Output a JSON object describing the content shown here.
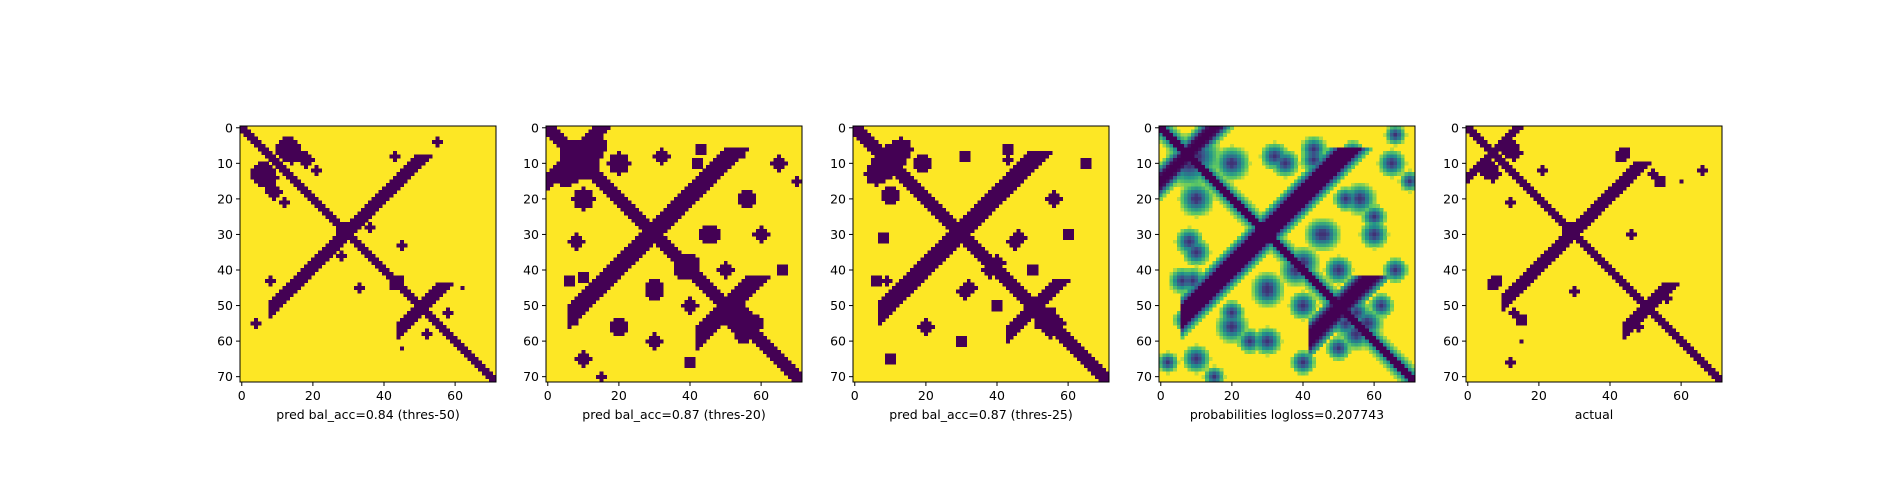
{
  "colors": {
    "background": "#440154",
    "contact": "#fde725",
    "viridis": [
      "#440154",
      "#3b528b",
      "#21918c",
      "#5ec962",
      "#fde725"
    ]
  },
  "chart_data": [
    {
      "type": "heatmap",
      "title": "",
      "xlabel": "pred bal_acc=0.84 (thres-50)",
      "ylabel": "",
      "size": 72,
      "xlim": [
        0,
        71
      ],
      "ylim": [
        71,
        0
      ],
      "xticks": [
        "0",
        "20",
        "40",
        "60"
      ],
      "yticks": [
        "0",
        "10",
        "20",
        "30",
        "40",
        "50",
        "60",
        "70"
      ],
      "colormap": "viridis",
      "value_range": [
        0,
        1
      ],
      "background_value": 1,
      "diagonal_band_value": 0,
      "diagonal_band_halfwidth": 1.6,
      "anti_diagonals": [
        {
          "sum": 59,
          "from": 8,
          "to": 40,
          "halfwidth": 1.2
        },
        {
          "sum": 101,
          "from": 44,
          "to": 62,
          "halfwidth": 1.0
        },
        {
          "sum": 85,
          "from": 63,
          "to": 70,
          "halfwidth": 0.7
        }
      ],
      "patches": [
        [
          13,
          6,
          3.5
        ],
        [
          14,
          7,
          3.0
        ],
        [
          18,
          9,
          2.0
        ],
        [
          8,
          43,
          1.2
        ],
        [
          12,
          21,
          1.0
        ],
        [
          44,
          43,
          1.5
        ],
        [
          55,
          46,
          1.5
        ],
        [
          28,
          28,
          1.5
        ],
        [
          28,
          36,
          1.2
        ],
        [
          48,
          48,
          1.2
        ],
        [
          58,
          52,
          1.3
        ],
        [
          33,
          45,
          1.0
        ],
        [
          45,
          62,
          0.8
        ],
        [
          4,
          55,
          1.0
        ]
      ]
    },
    {
      "type": "heatmap",
      "title": "",
      "xlabel": "pred bal_acc=0.87 (thres-20)",
      "ylabel": "",
      "size": 72,
      "xlim": [
        0,
        71
      ],
      "ylim": [
        71,
        0
      ],
      "xticks": [
        "0",
        "20",
        "40",
        "60"
      ],
      "yticks": [
        "0",
        "10",
        "20",
        "30",
        "40",
        "50",
        "60",
        "70"
      ],
      "colormap": "viridis",
      "value_range": [
        0,
        1
      ],
      "background_value": 1,
      "diagonal_band_value": 0,
      "diagonal_band_halfwidth": 2.4,
      "anti_diagonals": [
        {
          "sum": 59,
          "from": 6,
          "to": 42,
          "halfwidth": 1.7
        },
        {
          "sum": 101,
          "from": 42,
          "to": 64,
          "halfwidth": 1.5
        },
        {
          "sum": 85,
          "from": 60,
          "to": 71,
          "halfwidth": 1.2
        },
        {
          "sum": 15,
          "from": 0,
          "to": 15,
          "halfwidth": 1.0
        }
      ],
      "patches": [
        [
          10,
          8,
          5.0
        ],
        [
          13,
          5,
          3.5
        ],
        [
          20,
          10,
          3.0
        ],
        [
          8,
          32,
          2.0
        ],
        [
          10,
          42,
          1.8
        ],
        [
          7,
          54,
          1.5
        ],
        [
          43,
          6,
          1.8
        ],
        [
          46,
          30,
          2.5
        ],
        [
          56,
          20,
          2.5
        ],
        [
          60,
          30,
          2.0
        ],
        [
          30,
          45,
          2.5
        ],
        [
          38,
          40,
          2.5
        ],
        [
          50,
          40,
          2.0
        ],
        [
          55,
          58,
          2.5
        ],
        [
          65,
          10,
          2.0
        ],
        [
          66,
          40,
          1.5
        ],
        [
          52,
          55,
          2.0
        ],
        [
          15,
          70,
          1.0
        ]
      ]
    },
    {
      "type": "heatmap",
      "title": "",
      "xlabel": "pred bal_acc=0.87 (thres-25)",
      "ylabel": "",
      "size": 72,
      "xlim": [
        0,
        71
      ],
      "ylim": [
        71,
        0
      ],
      "xticks": [
        "0",
        "20",
        "40",
        "60"
      ],
      "yticks": [
        "0",
        "10",
        "20",
        "30",
        "40",
        "50",
        "60",
        "70"
      ],
      "colormap": "viridis",
      "value_range": [
        0,
        1
      ],
      "background_value": 1,
      "diagonal_band_value": 0,
      "diagonal_band_halfwidth": 2.1,
      "anti_diagonals": [
        {
          "sum": 59,
          "from": 7,
          "to": 41,
          "halfwidth": 1.5
        },
        {
          "sum": 101,
          "from": 43,
          "to": 63,
          "halfwidth": 1.3
        },
        {
          "sum": 85,
          "from": 61,
          "to": 71,
          "halfwidth": 1.0
        }
      ],
      "patches": [
        [
          11,
          8,
          4.0
        ],
        [
          13,
          6,
          3.0
        ],
        [
          19,
          10,
          2.5
        ],
        [
          8,
          31,
          1.5
        ],
        [
          9,
          43,
          1.3
        ],
        [
          43,
          6,
          1.5
        ],
        [
          46,
          31,
          2.0
        ],
        [
          56,
          20,
          2.0
        ],
        [
          60,
          30,
          1.6
        ],
        [
          32,
          45,
          2.0
        ],
        [
          38,
          40,
          2.0
        ],
        [
          50,
          40,
          1.6
        ],
        [
          55,
          57,
          2.0
        ],
        [
          65,
          10,
          1.6
        ],
        [
          52,
          55,
          1.5
        ]
      ]
    },
    {
      "type": "heatmap",
      "title": "",
      "xlabel": "probabilities logloss=0.207743",
      "ylabel": "",
      "size": 72,
      "xlim": [
        0,
        71
      ],
      "ylim": [
        71,
        0
      ],
      "xticks": [
        "0",
        "20",
        "40",
        "60"
      ],
      "yticks": [
        "0",
        "10",
        "20",
        "30",
        "40",
        "50",
        "60",
        "70"
      ],
      "colormap": "viridis",
      "value_range": [
        0,
        1
      ],
      "background_value": 1,
      "diagonal_band_value": 0,
      "diagonal_band_halfwidth": 1.8,
      "diagonal_halo_value": 0.45,
      "soft": true,
      "anti_diagonals": [
        {
          "sum": 59,
          "from": 6,
          "to": 42,
          "halfwidth": 1.6
        },
        {
          "sum": 101,
          "from": 42,
          "to": 64,
          "halfwidth": 1.4
        },
        {
          "sum": 85,
          "from": 58,
          "to": 71,
          "halfwidth": 1.2
        },
        {
          "sum": 15,
          "from": 0,
          "to": 15,
          "halfwidth": 1.0
        }
      ],
      "patches": [
        [
          10,
          8,
          5.5
        ],
        [
          20,
          10,
          3.5
        ],
        [
          8,
          32,
          2.5
        ],
        [
          9,
          43,
          2.2
        ],
        [
          7,
          54,
          2.0
        ],
        [
          43,
          6,
          2.2
        ],
        [
          46,
          30,
          3.0
        ],
        [
          56,
          20,
          3.0
        ],
        [
          60,
          30,
          2.5
        ],
        [
          30,
          45,
          3.0
        ],
        [
          38,
          40,
          3.0
        ],
        [
          50,
          40,
          2.5
        ],
        [
          55,
          58,
          3.0
        ],
        [
          65,
          10,
          2.5
        ],
        [
          66,
          40,
          2.0
        ],
        [
          52,
          55,
          2.5
        ],
        [
          15,
          70,
          1.5
        ],
        [
          25,
          60,
          2.0
        ],
        [
          35,
          10,
          2.5
        ],
        [
          20,
          52,
          2.0
        ],
        [
          62,
          50,
          2.0
        ],
        [
          2,
          66,
          1.5
        ]
      ]
    },
    {
      "type": "heatmap",
      "title": "",
      "xlabel": "actual",
      "ylabel": "",
      "size": 72,
      "xlim": [
        0,
        71
      ],
      "ylim": [
        71,
        0
      ],
      "xticks": [
        "0",
        "20",
        "40",
        "60"
      ],
      "yticks": [
        "0",
        "10",
        "20",
        "30",
        "40",
        "50",
        "60",
        "70"
      ],
      "colormap": "viridis",
      "value_range": [
        0,
        1
      ],
      "background_value": 1,
      "diagonal_band_value": 0,
      "diagonal_band_halfwidth": 1.6,
      "anti_diagonals": [
        {
          "sum": 59,
          "from": 10,
          "to": 42,
          "halfwidth": 1.2
        },
        {
          "sum": 101,
          "from": 44,
          "to": 62,
          "halfwidth": 1.1
        },
        {
          "sum": 85,
          "from": 62,
          "to": 70,
          "halfwidth": 0.8
        },
        {
          "sum": 14,
          "from": 0,
          "to": 14,
          "halfwidth": 0.8
        }
      ],
      "patches": [
        [
          12,
          6,
          2.5
        ],
        [
          13,
          7,
          2.0
        ],
        [
          8,
          43,
          1.5
        ],
        [
          12,
          21,
          1.0
        ],
        [
          44,
          7,
          1.5
        ],
        [
          54,
          15,
          1.5
        ],
        [
          28,
          29,
          1.8
        ],
        [
          46,
          30,
          1.0
        ],
        [
          55,
          46,
          1.2
        ],
        [
          66,
          12,
          1.0
        ],
        [
          13,
          52,
          1.0
        ],
        [
          48,
          56,
          1.0
        ],
        [
          15,
          60,
          0.8
        ]
      ]
    }
  ]
}
